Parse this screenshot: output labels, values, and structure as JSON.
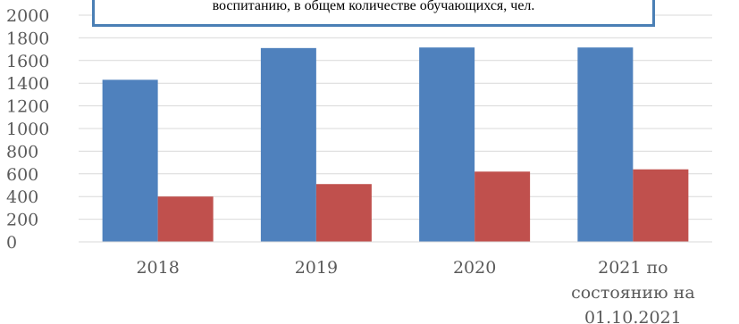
{
  "chart_data": {
    "type": "bar",
    "title": "воспитанию, в общем количестве обучающихся, чел.",
    "categories": [
      "2018",
      "2019",
      "2020",
      "2021 по состоянию на 01.10.2021"
    ],
    "category_label_lines": [
      [
        "2018"
      ],
      [
        "2019"
      ],
      [
        "2020"
      ],
      [
        "2021 по",
        "состоянию на",
        "01.10.2021"
      ]
    ],
    "series": [
      {
        "values": [
          1430,
          1710,
          1715,
          1715
        ],
        "color": "#4f81bd"
      },
      {
        "values": [
          400,
          510,
          620,
          640
        ],
        "color": "#c0504d"
      }
    ],
    "yticks": [
      0,
      200,
      400,
      600,
      800,
      1000,
      1200,
      1400,
      1600,
      1800,
      2000
    ],
    "ylim": [
      0,
      2000
    ],
    "grid": true,
    "legend": "none",
    "xlabel": "",
    "ylabel": ""
  }
}
